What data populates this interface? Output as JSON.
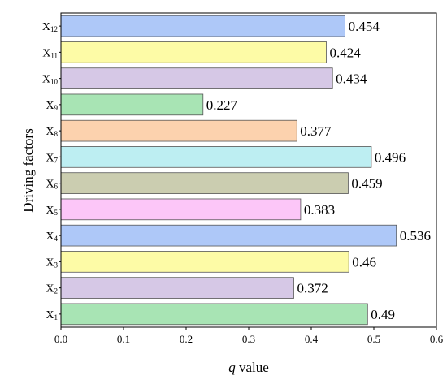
{
  "chart_data": {
    "type": "bar",
    "orientation": "horizontal",
    "title": "",
    "xlabel_italic": "q",
    "xlabel_rest": " value",
    "ylabel": "Driving factors",
    "xlim": [
      0,
      0.6
    ],
    "x_ticks": [
      "0.0",
      "0.1",
      "0.2",
      "0.3",
      "0.4",
      "0.5",
      "0.6"
    ],
    "grid": false,
    "legend": "none",
    "categories": [
      {
        "base": "X",
        "sub": "1"
      },
      {
        "base": "X",
        "sub": "2"
      },
      {
        "base": "X",
        "sub": "3"
      },
      {
        "base": "X",
        "sub": "4"
      },
      {
        "base": "X",
        "sub": "5"
      },
      {
        "base": "X",
        "sub": "6"
      },
      {
        "base": "X",
        "sub": "7"
      },
      {
        "base": "X",
        "sub": "8"
      },
      {
        "base": "X",
        "sub": "9"
      },
      {
        "base": "X",
        "sub": "10"
      },
      {
        "base": "X",
        "sub": "11"
      },
      {
        "base": "X",
        "sub": "12"
      }
    ],
    "values": [
      0.49,
      0.372,
      0.46,
      0.536,
      0.383,
      0.459,
      0.496,
      0.377,
      0.227,
      0.434,
      0.424,
      0.454
    ],
    "value_labels": [
      "0.49",
      "0.372",
      "0.46",
      "0.536",
      "0.383",
      "0.459",
      "0.496",
      "0.377",
      "0.227",
      "0.434",
      "0.424",
      "0.454"
    ],
    "colors": [
      "#a8e4b4",
      "#d6c8e6",
      "#fdfba6",
      "#aec8f8",
      "#fcc6f8",
      "#cbcdb0",
      "#bdeef2",
      "#fcd2ae",
      "#a8e4b4",
      "#d6c8e6",
      "#fdfba6",
      "#aec8f8"
    ]
  }
}
